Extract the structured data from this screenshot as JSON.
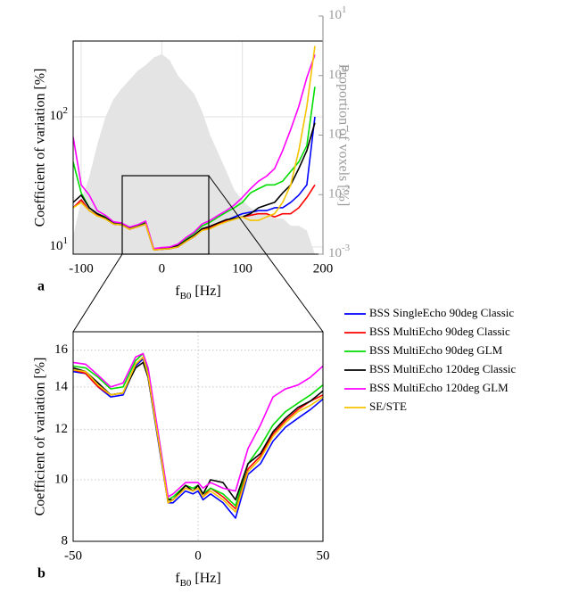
{
  "chart_data": [
    {
      "type": "line",
      "panel_label": "a",
      "x_label": "f_B0 [Hz]",
      "y_label": "Coefficient of variation [%]",
      "y2_label": "Proportion of voxels [%]",
      "x": [
        -110,
        -100,
        -90,
        -80,
        -70,
        -60,
        -50,
        -40,
        -30,
        -20,
        -10,
        0,
        10,
        20,
        30,
        40,
        50,
        60,
        70,
        80,
        90,
        100,
        110,
        120,
        130,
        140,
        150,
        160,
        170,
        180,
        190
      ],
      "xlim": [
        -110,
        200
      ],
      "xticks": [
        -100,
        0,
        100,
        200
      ],
      "ylim": [
        8.8,
        382
      ],
      "ylog": true,
      "yticks": [
        {
          "value": 10,
          "label": "10^1"
        },
        {
          "value": 100,
          "label": "10^2"
        }
      ],
      "y2lim": [
        0.001,
        10
      ],
      "y2log": true,
      "y2ticks": [
        {
          "value": 0.001,
          "label": "10^-3"
        },
        {
          "value": 0.01,
          "label": "10^-2"
        },
        {
          "value": 0.1,
          "label": "10^-1"
        },
        {
          "value": 1,
          "label": "10^0"
        },
        {
          "value": 10,
          "label": "10^1"
        }
      ],
      "grid": true,
      "series": [
        {
          "kind": "area",
          "axis": "y2",
          "color": "#e4e4e4",
          "values": [
            0.002,
            0.008,
            0.02,
            0.07,
            0.2,
            0.4,
            0.6,
            0.85,
            1.2,
            1.5,
            2.0,
            2.3,
            1.8,
            1.0,
            0.7,
            0.5,
            0.25,
            0.1,
            0.05,
            0.025,
            0.012,
            0.008,
            0.006,
            0.005,
            0.005,
            0.004,
            0.004,
            0.003,
            0.003,
            0.0025,
            0.001
          ]
        },
        {
          "color": "#0000ff",
          "values": [
            20,
            23,
            19,
            17.5,
            16.5,
            15,
            14.8,
            13.7,
            14.3,
            15,
            9.5,
            9.6,
            9.7,
            10,
            11,
            12,
            13.5,
            14,
            15,
            16,
            17,
            18,
            18.5,
            19,
            19,
            20,
            20,
            22,
            25,
            30,
            100
          ]
        },
        {
          "color": "#ff0000",
          "values": [
            20,
            23,
            19,
            17.5,
            16.5,
            15,
            14.8,
            13.7,
            14.3,
            15,
            9.5,
            9.6,
            9.7,
            10,
            11,
            12,
            13.5,
            14,
            15,
            16,
            16.5,
            17,
            17.5,
            18,
            18,
            17,
            18,
            18,
            20,
            24,
            30
          ]
        },
        {
          "color": "#00dd00",
          "values": [
            45,
            26,
            20,
            18,
            17,
            15.3,
            15,
            14,
            14.5,
            15.4,
            9.6,
            9.8,
            9.9,
            10.3,
            11.5,
            12.8,
            14.5,
            15.5,
            17,
            18.5,
            20,
            22,
            26,
            28,
            30,
            30,
            32,
            38,
            45,
            60,
            170
          ]
        },
        {
          "color": "#000000",
          "values": [
            22,
            25,
            20,
            18,
            16.8,
            15.2,
            14.9,
            13.8,
            14.4,
            15.2,
            9.6,
            9.7,
            9.9,
            10.2,
            11.2,
            12.3,
            13.8,
            14.4,
            15.3,
            16.2,
            16.6,
            17,
            18,
            20,
            21,
            22,
            26,
            30,
            40,
            55,
            90
          ]
        },
        {
          "color": "#ff00ff",
          "values": [
            70,
            30,
            25,
            19,
            17.5,
            15.6,
            15.3,
            14.2,
            14.8,
            15.8,
            9.7,
            9.9,
            10,
            10.5,
            11.8,
            13,
            15,
            16,
            17.5,
            19,
            21,
            24,
            28,
            32,
            35,
            40,
            55,
            80,
            120,
            200,
            300
          ]
        },
        {
          "color": "#f5c400",
          "values": [
            20,
            22,
            19,
            17.3,
            16.4,
            15,
            14.8,
            13.7,
            14.3,
            15,
            9.5,
            9.6,
            9.7,
            10,
            11,
            12,
            13.4,
            13.8,
            14.8,
            15.6,
            16.3,
            17,
            16,
            16,
            17,
            18,
            22,
            30,
            55,
            120,
            350
          ]
        }
      ]
    },
    {
      "type": "line",
      "panel_label": "b",
      "x_label": "f_B0 [Hz]",
      "y_label": "Coefficient of variation [%]",
      "x": [
        -50,
        -45,
        -40,
        -35,
        -30,
        -25,
        -22,
        -20,
        -15,
        -12,
        -10,
        -5,
        -2,
        0,
        2,
        5,
        10,
        15,
        20,
        25,
        30,
        35,
        40,
        45,
        50
      ],
      "xlim": [
        -50,
        50
      ],
      "xticks": [
        -50,
        0,
        50
      ],
      "ylim": [
        8,
        17.1
      ],
      "ylog": true,
      "yticks": [
        8,
        10,
        12,
        14,
        16
      ],
      "grid": true,
      "series": [
        {
          "name": "BSS SingleEcho 90deg Classic",
          "color": "#0000ff",
          "values": [
            14.8,
            14.7,
            14.0,
            13.5,
            13.6,
            15.1,
            15.5,
            14.5,
            10.9,
            9.2,
            9.2,
            9.6,
            9.5,
            9.6,
            9.3,
            9.5,
            9.2,
            8.7,
            10.2,
            10.6,
            11.5,
            12.1,
            12.5,
            12.9,
            13.4
          ]
        },
        {
          "name": "BSS MultiEcho 90deg Classic",
          "color": "#ff0000",
          "values": [
            14.9,
            14.7,
            14.0,
            13.6,
            13.7,
            15.2,
            15.6,
            14.6,
            11.0,
            9.2,
            9.3,
            9.7,
            9.6,
            9.7,
            9.4,
            9.7,
            9.4,
            9.0,
            10.4,
            10.9,
            11.8,
            12.4,
            12.9,
            13.3,
            13.6
          ]
        },
        {
          "name": "BSS MultiEcho 90deg GLM",
          "color": "#00dd00",
          "values": [
            15.1,
            15.0,
            14.5,
            13.9,
            14.0,
            15.4,
            15.8,
            14.8,
            11.2,
            9.3,
            9.4,
            9.8,
            9.7,
            9.8,
            9.5,
            9.7,
            9.5,
            9.1,
            10.6,
            11.3,
            12.2,
            12.8,
            13.2,
            13.6,
            14.1
          ]
        },
        {
          "name": "BSS MultiEcho 120deg Classic",
          "color": "#000000",
          "values": [
            15.0,
            14.8,
            14.2,
            13.6,
            13.7,
            15.0,
            15.3,
            14.5,
            11.0,
            9.3,
            9.3,
            9.8,
            9.6,
            9.8,
            9.5,
            10.0,
            9.9,
            9.3,
            10.6,
            11.0,
            11.9,
            12.5,
            13.0,
            13.3,
            13.8
          ]
        },
        {
          "name": "BSS MultiEcho 120deg GLM",
          "color": "#ff00ff",
          "values": [
            15.3,
            15.2,
            14.6,
            14.0,
            14.2,
            15.6,
            15.8,
            15.0,
            11.2,
            9.4,
            9.5,
            9.9,
            9.9,
            9.9,
            9.7,
            9.9,
            9.7,
            9.6,
            11.2,
            12.2,
            13.5,
            13.9,
            14.1,
            14.5,
            15.1
          ]
        },
        {
          "name": "SE/STE",
          "color": "#f5c400",
          "values": [
            14.9,
            14.8,
            14.1,
            13.6,
            13.7,
            15.2,
            15.6,
            14.6,
            11.0,
            9.2,
            9.3,
            9.7,
            9.6,
            9.7,
            9.4,
            9.6,
            9.3,
            8.9,
            10.3,
            10.8,
            11.7,
            12.3,
            12.8,
            13.1,
            13.5
          ]
        }
      ]
    }
  ]
}
